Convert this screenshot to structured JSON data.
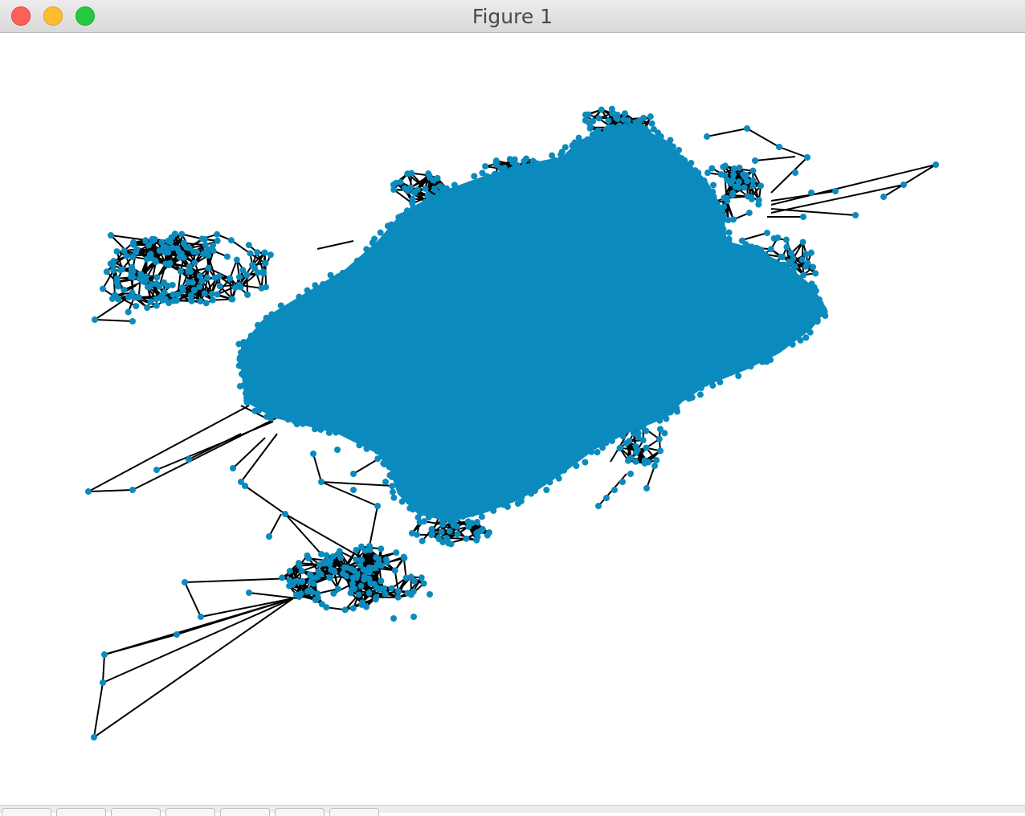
{
  "window": {
    "title": "Figure 1"
  },
  "colors": {
    "node": "#0b8bbd",
    "edge": "#000000",
    "background": "#ffffff"
  },
  "toolbar": {
    "buttons": [
      "home-button",
      "back-button",
      "forward-button",
      "pan-button",
      "zoom-button",
      "configure-subplots-button",
      "save-button"
    ]
  }
}
